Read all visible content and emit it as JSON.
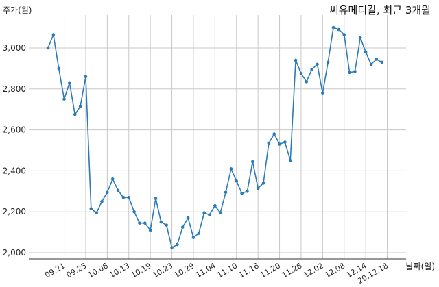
{
  "chart_data": {
    "type": "line",
    "title": "씨유메디칼, 최근 3개월",
    "ylabel": "주가(원)",
    "xlabel": "날짜(일)",
    "ylim": [
      2000,
      3150
    ],
    "yticks": [
      2000,
      2200,
      2400,
      2600,
      2800,
      3000
    ],
    "ytick_labels": [
      "2,000",
      "2,200",
      "2,400",
      "2,600",
      "2,800",
      "3,000"
    ],
    "xtick_labels": [
      "09.21",
      "09.25",
      "10.06",
      "10.13",
      "10.19",
      "10.23",
      "10.29",
      "11.04",
      "11.10",
      "11.16",
      "11.20",
      "11.26",
      "12.02",
      "12.08",
      "12.14",
      "20.12.18"
    ],
    "xtick_index": [
      3,
      7,
      11,
      15,
      19,
      23,
      27,
      31,
      35,
      39,
      43,
      47,
      51,
      55,
      59,
      63
    ],
    "grid": true,
    "line_color": "#2c7bb6",
    "series": [
      {
        "values": [
          3000,
          3065,
          2900,
          2750,
          2830,
          2675,
          2715,
          2860,
          2215,
          2195,
          2250,
          2295,
          2360,
          2305,
          2270,
          2270,
          2200,
          2145,
          2145,
          2110,
          2265,
          2150,
          2135,
          2025,
          2040,
          2125,
          2170,
          2075,
          2095,
          2195,
          2185,
          2230,
          2195,
          2295,
          2410,
          2350,
          2290,
          2300,
          2445,
          2315,
          2340,
          2535,
          2580,
          2530,
          2540,
          2450,
          2940,
          2875,
          2835,
          2895,
          2920,
          2780,
          2930,
          3100,
          3090,
          3065,
          2880,
          2885,
          3050,
          2980,
          2920,
          2945,
          2930
        ]
      }
    ]
  }
}
